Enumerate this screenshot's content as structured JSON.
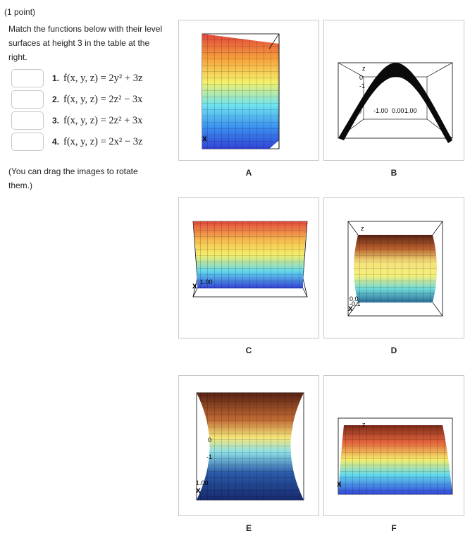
{
  "point_label": "(1 point)",
  "instructions": "Match the functions below with their level surfaces at height 3 in the table at the right.",
  "functions": [
    {
      "number": "1.",
      "formula": "f(x, y, z) = 2y² + 3z",
      "answer": ""
    },
    {
      "number": "2.",
      "formula": "f(x, y, z) = 2z² − 3x",
      "answer": ""
    },
    {
      "number": "3.",
      "formula": "f(x, y, z) = 2z² + 3x",
      "answer": ""
    },
    {
      "number": "4.",
      "formula": "f(x, y, z) = 2x² − 3z",
      "answer": ""
    }
  ],
  "drag_note": "(You can drag the images to rotate them.)",
  "plots": [
    {
      "label": "A",
      "axis_text": [
        "x"
      ]
    },
    {
      "label": "B",
      "axis_text": [
        "z",
        "0",
        "-1",
        "0",
        "-1.00",
        "0.00",
        "1.00"
      ]
    },
    {
      "label": "C",
      "axis_text": [
        "x",
        "1.00"
      ]
    },
    {
      "label": "D",
      "axis_text": [
        "z",
        "0.0",
        "-0.1",
        "x"
      ]
    },
    {
      "label": "E",
      "axis_text": [
        "0",
        "-1",
        "1.00",
        "x"
      ]
    },
    {
      "label": "F",
      "axis_text": [
        "z",
        "x"
      ]
    }
  ]
}
